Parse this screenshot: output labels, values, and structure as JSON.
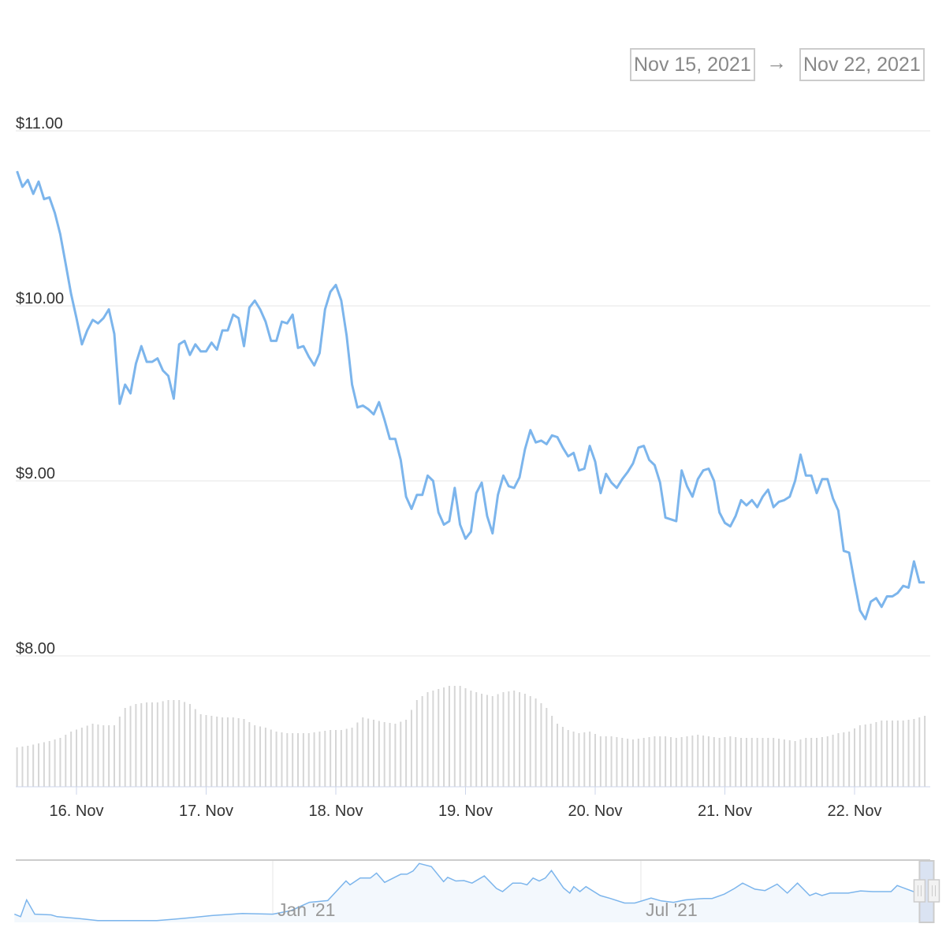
{
  "range_selector": {
    "from": "Nov 15, 2021",
    "arrow": "→",
    "to": "Nov 22, 2021"
  },
  "colors": {
    "line": "#7cb5ec",
    "volume": "#d6d6d6",
    "grid": "#e6e6e6",
    "navigator_fill": "#f3f8fd",
    "navigator_mask": "#cdd9ee"
  },
  "chart_data": [
    {
      "type": "line",
      "title": "",
      "y_ticks": [
        "$8.00",
        "$9.00",
        "$10.00",
        "$11.00"
      ],
      "y_tick_values": [
        8,
        9,
        10,
        11
      ],
      "ylim": [
        8,
        11
      ],
      "x_ticks": [
        "16. Nov",
        "17. Nov",
        "18. Nov",
        "19. Nov",
        "20. Nov",
        "21. Nov",
        "22. Nov"
      ],
      "x_tick_dates": [
        "2021-11-16",
        "2021-11-17",
        "2021-11-18",
        "2021-11-19",
        "2021-11-20",
        "2021-11-21",
        "2021-11-22"
      ],
      "x_start": "2021-11-15T13:00",
      "x_interval_hours": 1,
      "grid": true,
      "values": [
        10.77,
        10.68,
        10.72,
        10.64,
        10.71,
        10.61,
        10.62,
        10.53,
        10.41,
        10.24,
        10.07,
        9.93,
        9.78,
        9.86,
        9.92,
        9.9,
        9.93,
        9.98,
        9.84,
        9.44,
        9.55,
        9.5,
        9.67,
        9.77,
        9.68,
        9.68,
        9.7,
        9.63,
        9.6,
        9.47,
        9.78,
        9.8,
        9.72,
        9.78,
        9.74,
        9.74,
        9.79,
        9.75,
        9.86,
        9.86,
        9.95,
        9.93,
        9.77,
        9.99,
        10.03,
        9.98,
        9.91,
        9.8,
        9.8,
        9.91,
        9.9,
        9.95,
        9.76,
        9.77,
        9.71,
        9.66,
        9.73,
        9.98,
        10.08,
        10.12,
        10.03,
        9.83,
        9.55,
        9.42,
        9.43,
        9.41,
        9.38,
        9.45,
        9.35,
        9.24,
        9.24,
        9.12,
        8.91,
        8.84,
        8.92,
        8.92,
        9.03,
        9.0,
        8.82,
        8.75,
        8.77,
        8.96,
        8.75,
        8.67,
        8.71,
        8.93,
        8.99,
        8.8,
        8.7,
        8.92,
        9.03,
        8.97,
        8.96,
        9.02,
        9.18,
        9.29,
        9.22,
        9.23,
        9.21,
        9.26,
        9.25,
        9.19,
        9.14,
        9.16,
        9.06,
        9.07,
        9.2,
        9.11,
        8.93,
        9.04,
        8.99,
        8.96,
        9.01,
        9.05,
        9.1,
        9.19,
        9.2,
        9.12,
        9.09,
        8.99,
        8.79,
        8.78,
        8.77,
        9.06,
        8.97,
        8.91,
        9.01,
        9.06,
        9.07,
        9.0,
        8.82,
        8.76,
        8.74,
        8.8,
        8.89,
        8.86,
        8.89,
        8.85,
        8.91,
        8.95,
        8.85,
        8.88,
        8.89,
        8.91,
        9.0,
        9.15,
        9.03,
        9.03,
        8.93,
        9.01,
        9.01,
        8.9,
        8.83,
        8.6,
        8.59,
        8.42,
        8.26,
        8.21,
        8.31,
        8.33,
        8.28,
        8.34,
        8.34,
        8.36,
        8.4,
        8.39,
        8.54,
        8.42,
        8.42
      ]
    },
    {
      "type": "bar",
      "series": "volume (relative, unlabeled)",
      "x_start": "2021-11-15T13:00",
      "x_interval_hours": 2,
      "ylim": [
        0,
        130
      ],
      "values": [
        50,
        52,
        55,
        58,
        62,
        70,
        75,
        80,
        78,
        78,
        100,
        105,
        107,
        107,
        110,
        110,
        105,
        92,
        90,
        88,
        88,
        86,
        78,
        75,
        70,
        68,
        68,
        68,
        70,
        72,
        72,
        75,
        88,
        85,
        82,
        80,
        85,
        110,
        120,
        124,
        128,
        128,
        122,
        118,
        115,
        120,
        122,
        118,
        112,
        100,
        80,
        72,
        68,
        70,
        64,
        64,
        62,
        60,
        62,
        64,
        64,
        62,
        64,
        66,
        64,
        62,
        64,
        62,
        62,
        62,
        62,
        60,
        58,
        62,
        62,
        64,
        68,
        70,
        78,
        80,
        84,
        84,
        84,
        86,
        90
      ]
    },
    {
      "type": "area",
      "series": "navigator",
      "x_ticks": [
        "Jan '21",
        "Jul '21"
      ],
      "x_tick_dates": [
        "2021-01-01",
        "2021-07-01"
      ],
      "selected_range": [
        "2021-11-15",
        "2021-11-22"
      ],
      "ylim": [
        0,
        17
      ],
      "points": [
        [
          "2020-08-27",
          2.3
        ],
        [
          "2020-08-30",
          1.6
        ],
        [
          "2020-09-02",
          6.3
        ],
        [
          "2020-09-06",
          2.3
        ],
        [
          "2020-09-14",
          2.1
        ],
        [
          "2020-09-17",
          1.6
        ],
        [
          "2020-09-28",
          1.05
        ],
        [
          "2020-10-07",
          0.5
        ],
        [
          "2020-10-19",
          0.5
        ],
        [
          "2020-11-05",
          0.5
        ],
        [
          "2020-11-14",
          0.9
        ],
        [
          "2020-11-23",
          1.4
        ],
        [
          "2020-12-02",
          1.9
        ],
        [
          "2020-12-17",
          2.5
        ],
        [
          "2021-01-01",
          2.3
        ],
        [
          "2021-01-10",
          3.3
        ],
        [
          "2021-01-19",
          5.6
        ],
        [
          "2021-01-28",
          6.1
        ],
        [
          "2021-02-06",
          11.6
        ],
        [
          "2021-02-08",
          10.5
        ],
        [
          "2021-02-13",
          12.4
        ],
        [
          "2021-02-18",
          12.4
        ],
        [
          "2021-02-21",
          13.8
        ],
        [
          "2021-02-25",
          11.2
        ],
        [
          "2021-03-05",
          13.5
        ],
        [
          "2021-03-08",
          13.5
        ],
        [
          "2021-03-11",
          14.4
        ],
        [
          "2021-03-14",
          16.5
        ],
        [
          "2021-03-20",
          15.6
        ],
        [
          "2021-03-26",
          11.4
        ],
        [
          "2021-03-28",
          12.6
        ],
        [
          "2021-04-01",
          11.6
        ],
        [
          "2021-04-05",
          11.7
        ],
        [
          "2021-04-09",
          11.0
        ],
        [
          "2021-04-15",
          13.0
        ],
        [
          "2021-04-21",
          9.5
        ],
        [
          "2021-04-24",
          8.6
        ],
        [
          "2021-04-29",
          11.0
        ],
        [
          "2021-05-03",
          11.0
        ],
        [
          "2021-05-06",
          10.5
        ],
        [
          "2021-05-09",
          12.4
        ],
        [
          "2021-05-12",
          11.6
        ],
        [
          "2021-05-15",
          12.4
        ],
        [
          "2021-05-18",
          14.5
        ],
        [
          "2021-05-24",
          9.6
        ],
        [
          "2021-05-27",
          8.2
        ],
        [
          "2021-05-29",
          10.0
        ],
        [
          "2021-06-01",
          8.6
        ],
        [
          "2021-06-04",
          10.0
        ],
        [
          "2021-06-11",
          7.5
        ],
        [
          "2021-06-16",
          6.7
        ],
        [
          "2021-06-23",
          5.4
        ],
        [
          "2021-06-28",
          5.4
        ],
        [
          "2021-07-02",
          6.1
        ],
        [
          "2021-07-06",
          6.8
        ],
        [
          "2021-07-11",
          6.0
        ],
        [
          "2021-07-17",
          5.6
        ],
        [
          "2021-07-23",
          6.3
        ],
        [
          "2021-08-01",
          6.7
        ],
        [
          "2021-08-05",
          6.7
        ],
        [
          "2021-08-11",
          7.9
        ],
        [
          "2021-08-16",
          9.5
        ],
        [
          "2021-08-20",
          11.0
        ],
        [
          "2021-08-26",
          9.3
        ],
        [
          "2021-08-31",
          8.9
        ],
        [
          "2021-09-06",
          10.7
        ],
        [
          "2021-09-11",
          8.2
        ],
        [
          "2021-09-16",
          11.0
        ],
        [
          "2021-09-22",
          7.5
        ],
        [
          "2021-09-25",
          8.2
        ],
        [
          "2021-09-28",
          7.5
        ],
        [
          "2021-10-02",
          8.2
        ],
        [
          "2021-10-11",
          8.2
        ],
        [
          "2021-10-17",
          8.8
        ],
        [
          "2021-10-23",
          8.6
        ],
        [
          "2021-11-01",
          8.6
        ],
        [
          "2021-11-04",
          10.3
        ],
        [
          "2021-11-12",
          8.6
        ]
      ]
    }
  ]
}
